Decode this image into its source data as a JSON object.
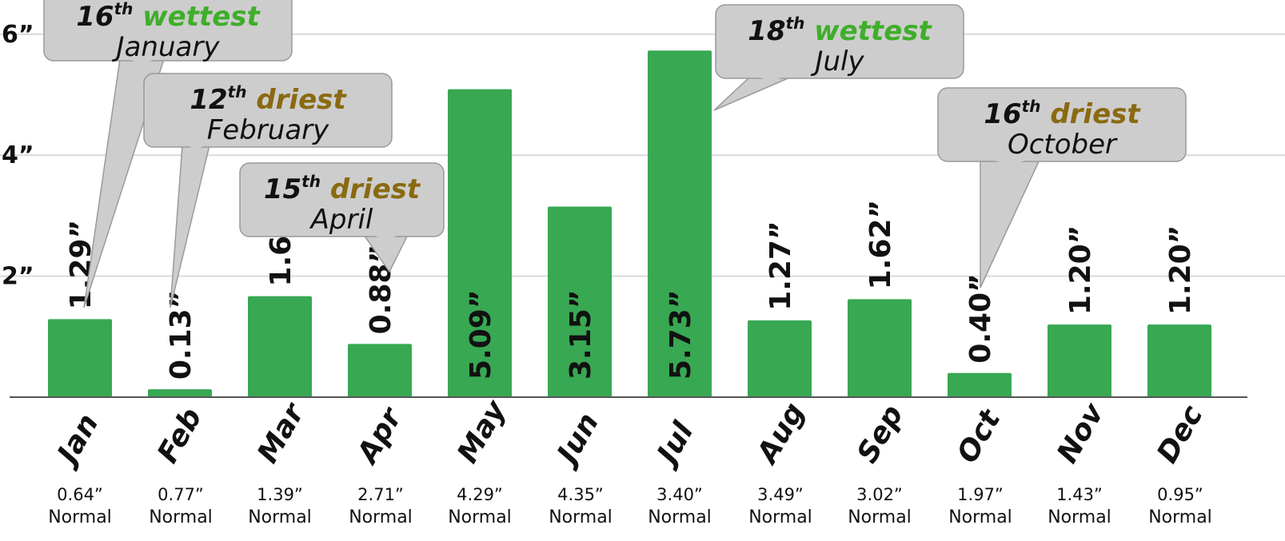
{
  "chart_data": {
    "type": "bar",
    "categories": [
      "Jan",
      "Feb",
      "Mar",
      "Apr",
      "May",
      "Jun",
      "Jul",
      "Aug",
      "Sep",
      "Oct",
      "Nov",
      "Dec"
    ],
    "values": [
      1.29,
      0.13,
      1.67,
      0.88,
      5.09,
      3.15,
      5.73,
      1.27,
      1.62,
      0.4,
      1.2,
      1.2
    ],
    "value_labels": [
      "1.29”",
      "0.13”",
      "1.67”",
      "0.88”",
      "5.09”",
      "3.15”",
      "5.73”",
      "1.27”",
      "1.62”",
      "0.40”",
      "1.20”",
      "1.20”"
    ],
    "normals": [
      "0.64”",
      "0.77”",
      "1.39”",
      "2.71”",
      "4.29”",
      "4.35”",
      "3.40”",
      "3.49”",
      "3.02”",
      "1.97”",
      "1.43”",
      "0.95”"
    ],
    "normal_label": "Normal",
    "ylim": [
      0,
      6.5
    ],
    "yticks": [
      2,
      4,
      6
    ],
    "ytick_labels": [
      "2”",
      "4”",
      "6”"
    ],
    "grid": true,
    "colors": {
      "bar": "#38a853",
      "wet": "#3fae2a",
      "dry": "#8a6a10",
      "callout_fill": "#cdcdcd",
      "callout_stroke": "#9a9a9a",
      "grid": "#d9d9d9"
    },
    "annotations": [
      {
        "rank": "16",
        "suffix": "th",
        "word": "wettest",
        "kind": "wet",
        "month": "January",
        "target": "Jan"
      },
      {
        "rank": "12",
        "suffix": "th",
        "word": "driest",
        "kind": "dry",
        "month": "February",
        "target": "Feb"
      },
      {
        "rank": "15",
        "suffix": "th",
        "word": "driest",
        "kind": "dry",
        "month": "April",
        "target": "Apr"
      },
      {
        "rank": "18",
        "suffix": "th",
        "word": "wettest",
        "kind": "wet",
        "month": "July",
        "target": "Jul"
      },
      {
        "rank": "16",
        "suffix": "th",
        "word": "driest",
        "kind": "dry",
        "month": "October",
        "target": "Oct"
      }
    ]
  }
}
